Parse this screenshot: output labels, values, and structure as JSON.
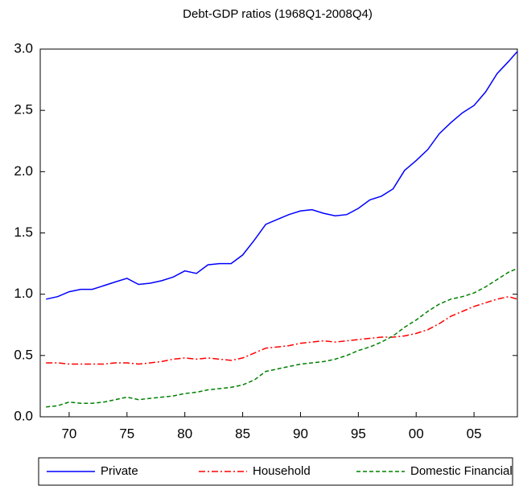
{
  "chart_data": {
    "type": "line",
    "title": "Debt-GDP ratios (1968Q1-2008Q4)",
    "x": [
      1968,
      1969,
      1970,
      1971,
      1972,
      1973,
      1974,
      1975,
      1976,
      1977,
      1978,
      1979,
      1980,
      1981,
      1982,
      1983,
      1984,
      1985,
      1986,
      1987,
      1988,
      1989,
      1990,
      1991,
      1992,
      1993,
      1994,
      1995,
      1996,
      1997,
      1998,
      1999,
      2000,
      2001,
      2002,
      2003,
      2004,
      2005,
      2006,
      2007,
      2008,
      2008.75
    ],
    "series": [
      {
        "name": "Private",
        "color": "#0000ff",
        "line_style": "solid",
        "values": [
          0.96,
          0.98,
          1.02,
          1.04,
          1.04,
          1.07,
          1.1,
          1.13,
          1.08,
          1.09,
          1.11,
          1.14,
          1.19,
          1.17,
          1.24,
          1.25,
          1.25,
          1.32,
          1.44,
          1.57,
          1.61,
          1.65,
          1.68,
          1.69,
          1.66,
          1.64,
          1.65,
          1.7,
          1.77,
          1.8,
          1.86,
          2.01,
          2.09,
          2.18,
          2.31,
          2.4,
          2.48,
          2.54,
          2.65,
          2.8,
          2.9,
          2.98
        ]
      },
      {
        "name": "Household",
        "color": "#ff0000",
        "line_style": "dashdot",
        "values": [
          0.44,
          0.44,
          0.43,
          0.43,
          0.43,
          0.43,
          0.44,
          0.44,
          0.43,
          0.44,
          0.45,
          0.47,
          0.48,
          0.47,
          0.48,
          0.47,
          0.46,
          0.48,
          0.52,
          0.56,
          0.57,
          0.58,
          0.6,
          0.61,
          0.62,
          0.61,
          0.62,
          0.63,
          0.64,
          0.65,
          0.65,
          0.66,
          0.68,
          0.71,
          0.76,
          0.82,
          0.86,
          0.9,
          0.93,
          0.96,
          0.98,
          0.96
        ]
      },
      {
        "name": "Domestic Financial",
        "color": "#008000",
        "line_style": "dashed",
        "values": [
          0.08,
          0.09,
          0.12,
          0.11,
          0.11,
          0.12,
          0.14,
          0.16,
          0.14,
          0.15,
          0.16,
          0.17,
          0.19,
          0.2,
          0.22,
          0.23,
          0.24,
          0.26,
          0.3,
          0.37,
          0.39,
          0.41,
          0.43,
          0.44,
          0.45,
          0.47,
          0.5,
          0.54,
          0.57,
          0.61,
          0.66,
          0.73,
          0.79,
          0.86,
          0.92,
          0.96,
          0.98,
          1.01,
          1.06,
          1.12,
          1.18,
          1.21
        ]
      }
    ],
    "xlim": [
      1967.5,
      2008.75
    ],
    "xticks": [
      {
        "value": 1970,
        "label": "70"
      },
      {
        "value": 1975,
        "label": "75"
      },
      {
        "value": 1980,
        "label": "80"
      },
      {
        "value": 1985,
        "label": "85"
      },
      {
        "value": 1990,
        "label": "90"
      },
      {
        "value": 1995,
        "label": "95"
      },
      {
        "value": 2000,
        "label": "00"
      },
      {
        "value": 2005,
        "label": "05"
      }
    ],
    "ylim": [
      0,
      3
    ],
    "yticks": [
      {
        "value": 0,
        "label": "0.0"
      },
      0.5,
      {
        "value": 1,
        "label": "1.0"
      },
      1.5,
      {
        "value": 2,
        "label": "2.0"
      },
      2.5,
      {
        "value": 3,
        "label": "3.0"
      }
    ],
    "legend": "bottom"
  }
}
